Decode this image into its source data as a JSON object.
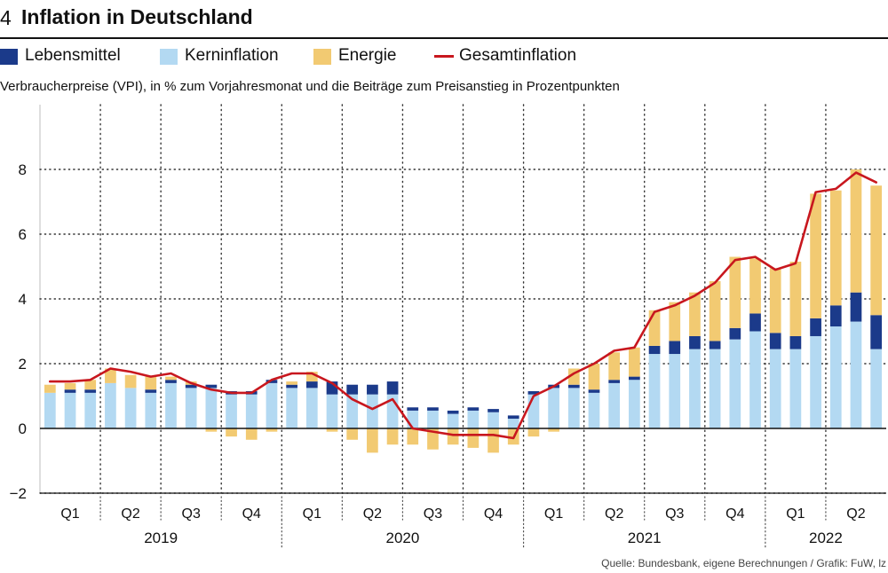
{
  "header": {
    "number": "4",
    "title": "Inflation in Deutschland"
  },
  "legend": [
    {
      "label": "Lebensmittel",
      "type": "bar",
      "color": "#1b3a8a"
    },
    {
      "label": "Kerninflation",
      "type": "bar",
      "color": "#b3d9f2"
    },
    {
      "label": "Energie",
      "type": "bar",
      "color": "#f2ca72"
    },
    {
      "label": "Gesamtinflation",
      "type": "line",
      "color": "#c8171e"
    }
  ],
  "subtitle": "Verbraucherpreise (VPI), in % zum Vorjahresmonat und die Beiträge zum Preisanstieg in Prozentpunkten",
  "source": "Quelle: Bundesbank, eigene Berechnungen / Grafik: FuW, lz",
  "chart_data": {
    "type": "bar",
    "stacked": true,
    "title": "Inflation in Deutschland",
    "xlabel": "",
    "ylabel": "",
    "ylim": [
      -2,
      10
    ],
    "yticks": [
      -2,
      0,
      2,
      4,
      6,
      8
    ],
    "ytick_labels": [
      "−2",
      "0",
      "2",
      "4",
      "6",
      "8"
    ],
    "grid": true,
    "months": 42,
    "quarter_labels": [
      "Q1",
      "Q2",
      "Q3",
      "Q4",
      "Q1",
      "Q2",
      "Q3",
      "Q4",
      "Q1",
      "Q2",
      "Q3",
      "Q4",
      "Q1",
      "Q2"
    ],
    "years": [
      {
        "label": "2019",
        "start_month": 0,
        "span": 12
      },
      {
        "label": "2020",
        "start_month": 12,
        "span": 12
      },
      {
        "label": "2021",
        "start_month": 24,
        "span": 12
      },
      {
        "label": "2022",
        "start_month": 36,
        "span": 6
      }
    ],
    "series": [
      {
        "name": "Kerninflation",
        "color": "#b3d9f2",
        "values": [
          1.1,
          1.1,
          1.1,
          1.4,
          1.25,
          1.1,
          1.4,
          1.25,
          1.25,
          1.05,
          1.05,
          1.4,
          1.25,
          1.25,
          1.05,
          1.05,
          1.05,
          1.05,
          0.55,
          0.55,
          0.45,
          0.55,
          0.5,
          0.3,
          1.05,
          1.25,
          1.25,
          1.1,
          1.4,
          1.5,
          2.3,
          2.3,
          2.45,
          2.45,
          2.75,
          3.0,
          2.45,
          2.45,
          2.85,
          3.15,
          3.3,
          2.45
        ]
      },
      {
        "name": "Lebensmittel",
        "color": "#1b3a8a",
        "values": [
          0.0,
          0.1,
          0.1,
          0.0,
          0.0,
          0.1,
          0.1,
          0.1,
          0.1,
          0.1,
          0.1,
          0.1,
          0.1,
          0.2,
          0.4,
          0.3,
          0.3,
          0.4,
          0.1,
          0.1,
          0.1,
          0.1,
          0.1,
          0.1,
          0.1,
          0.1,
          0.1,
          0.1,
          0.1,
          0.1,
          0.25,
          0.4,
          0.4,
          0.25,
          0.35,
          0.55,
          0.5,
          0.4,
          0.55,
          0.65,
          0.9,
          1.05
        ]
      },
      {
        "name": "Energie",
        "color": "#f2ca72",
        "values": [
          0.25,
          0.2,
          0.3,
          0.45,
          0.4,
          0.4,
          0.1,
          0.1,
          -0.1,
          -0.25,
          -0.35,
          -0.1,
          0.1,
          0.3,
          -0.1,
          -0.35,
          -0.75,
          -0.5,
          -0.5,
          -0.65,
          -0.5,
          -0.6,
          -0.75,
          -0.5,
          -0.25,
          -0.1,
          0.5,
          0.8,
          0.85,
          0.9,
          1.1,
          1.2,
          1.35,
          1.85,
          2.2,
          1.7,
          2.0,
          2.3,
          3.85,
          3.55,
          3.8,
          4.0
        ]
      },
      {
        "name": "Gesamtinflation",
        "type": "line",
        "color": "#c8171e",
        "values": [
          1.45,
          1.45,
          1.5,
          1.85,
          1.75,
          1.6,
          1.7,
          1.4,
          1.2,
          1.1,
          1.1,
          1.5,
          1.7,
          1.7,
          1.4,
          0.9,
          0.6,
          0.9,
          0.0,
          -0.1,
          -0.2,
          -0.2,
          -0.2,
          -0.3,
          1.0,
          1.3,
          1.7,
          2.0,
          2.4,
          2.5,
          3.6,
          3.8,
          4.1,
          4.5,
          5.2,
          5.3,
          4.9,
          5.1,
          7.3,
          7.4,
          7.9,
          7.6
        ]
      }
    ]
  }
}
